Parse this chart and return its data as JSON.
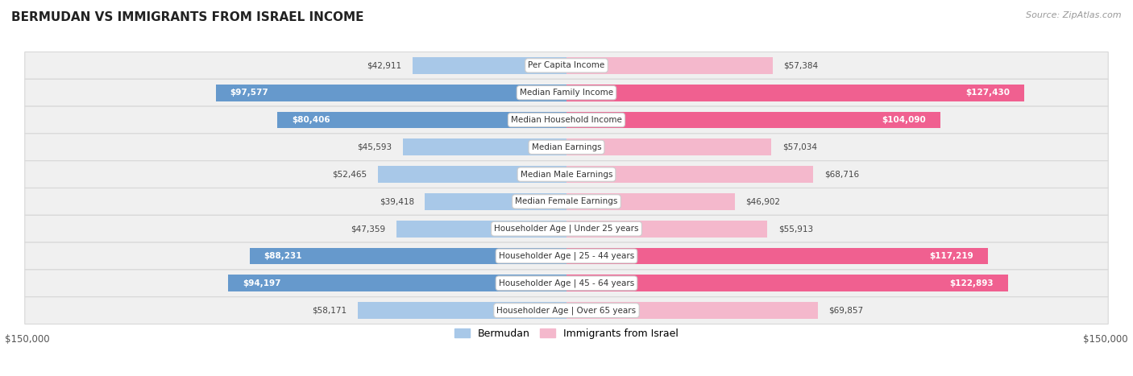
{
  "title": "BERMUDAN VS IMMIGRANTS FROM ISRAEL INCOME",
  "source": "Source: ZipAtlas.com",
  "max_val": 150000,
  "blue_light": "#a8c8e8",
  "blue_dark": "#6699cc",
  "pink_light": "#f4b8cc",
  "pink_dark": "#f06090",
  "label_color_dark": "#555555",
  "label_color_white": "#ffffff",
  "bg_color": "#ffffff",
  "row_bg": "#f0f0f0",
  "row_border": "#d8d8d8",
  "categories": [
    "Per Capita Income",
    "Median Family Income",
    "Median Household Income",
    "Median Earnings",
    "Median Male Earnings",
    "Median Female Earnings",
    "Householder Age | Under 25 years",
    "Householder Age | 25 - 44 years",
    "Householder Age | 45 - 64 years",
    "Householder Age | Over 65 years"
  ],
  "bermudan": [
    42911,
    97577,
    80406,
    45593,
    52465,
    39418,
    47359,
    88231,
    94197,
    58171
  ],
  "israel": [
    57384,
    127430,
    104090,
    57034,
    68716,
    46902,
    55913,
    117219,
    122893,
    69857
  ],
  "bermudan_labels": [
    "$42,911",
    "$97,577",
    "$80,406",
    "$45,593",
    "$52,465",
    "$39,418",
    "$47,359",
    "$88,231",
    "$94,197",
    "$58,171"
  ],
  "israel_labels": [
    "$57,384",
    "$127,430",
    "$104,090",
    "$57,034",
    "$68,716",
    "$46,902",
    "$55,913",
    "$117,219",
    "$122,893",
    "$69,857"
  ],
  "legend_bermudan": "Bermudan",
  "legend_israel": "Immigrants from Israel",
  "inside_threshold": 70000
}
